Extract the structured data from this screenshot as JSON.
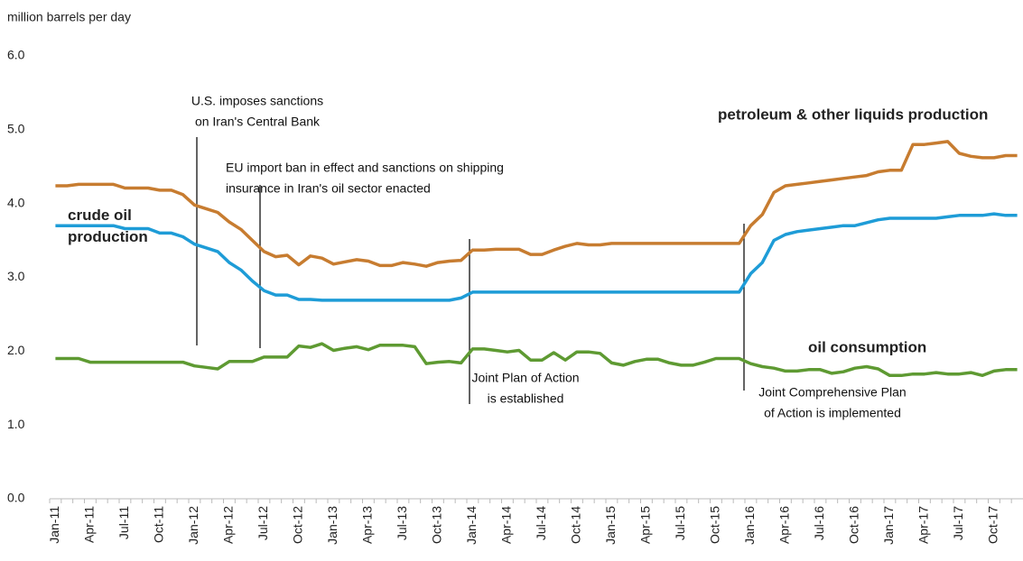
{
  "chart_data": {
    "type": "line",
    "y_label": "million barrels per day",
    "categories": [
      "Jan-11",
      null,
      null,
      "Apr-11",
      null,
      null,
      "Jul-11",
      null,
      null,
      "Oct-11",
      null,
      null,
      "Jan-12",
      null,
      null,
      "Apr-12",
      null,
      null,
      "Jul-12",
      null,
      null,
      "Oct-12",
      null,
      null,
      "Jan-13",
      null,
      null,
      "Apr-13",
      null,
      null,
      "Jul-13",
      null,
      null,
      "Oct-13",
      null,
      null,
      "Jan-14",
      null,
      null,
      "Apr-14",
      null,
      null,
      "Jul-14",
      null,
      null,
      "Oct-14",
      null,
      null,
      "Jan-15",
      null,
      null,
      "Apr-15",
      null,
      null,
      "Jul-15",
      null,
      null,
      "Oct-15",
      null,
      null,
      "Jan-16",
      null,
      null,
      "Apr-16",
      null,
      null,
      "Jul-16",
      null,
      null,
      "Oct-16",
      null,
      null,
      "Jan-17",
      null,
      null,
      "Apr-17",
      null,
      null,
      "Jul-17",
      null,
      null,
      "Oct-17",
      null,
      null
    ],
    "series": [
      {
        "name": "petroleum & other liquids production",
        "color": "#c77c30",
        "values": [
          4.24,
          4.24,
          4.26,
          4.26,
          4.26,
          4.26,
          4.21,
          4.21,
          4.21,
          4.18,
          4.18,
          4.12,
          3.98,
          3.93,
          3.88,
          3.75,
          3.65,
          3.5,
          3.35,
          3.28,
          3.3,
          3.17,
          3.29,
          3.26,
          3.18,
          3.21,
          3.24,
          3.22,
          3.16,
          3.16,
          3.2,
          3.18,
          3.15,
          3.2,
          3.22,
          3.23,
          3.37,
          3.37,
          3.38,
          3.38,
          3.38,
          3.31,
          3.31,
          3.37,
          3.42,
          3.46,
          3.44,
          3.44,
          3.46,
          3.46,
          3.46,
          3.46,
          3.46,
          3.46,
          3.46,
          3.46,
          3.46,
          3.46,
          3.46,
          3.46,
          3.7,
          3.85,
          4.15,
          4.24,
          4.26,
          4.28,
          4.3,
          4.32,
          4.34,
          4.36,
          4.38,
          4.43,
          4.45,
          4.45,
          4.8,
          4.8,
          4.82,
          4.84,
          4.68,
          4.64,
          4.62,
          4.62,
          4.65,
          4.65
        ]
      },
      {
        "name": "crude oil production",
        "color": "#1e9cd7",
        "values": [
          3.7,
          3.7,
          3.7,
          3.7,
          3.7,
          3.7,
          3.66,
          3.66,
          3.66,
          3.6,
          3.6,
          3.55,
          3.45,
          3.4,
          3.35,
          3.2,
          3.1,
          2.95,
          2.82,
          2.76,
          2.76,
          2.7,
          2.7,
          2.69,
          2.69,
          2.69,
          2.69,
          2.69,
          2.69,
          2.69,
          2.69,
          2.69,
          2.69,
          2.69,
          2.69,
          2.72,
          2.8,
          2.8,
          2.8,
          2.8,
          2.8,
          2.8,
          2.8,
          2.8,
          2.8,
          2.8,
          2.8,
          2.8,
          2.8,
          2.8,
          2.8,
          2.8,
          2.8,
          2.8,
          2.8,
          2.8,
          2.8,
          2.8,
          2.8,
          2.8,
          3.05,
          3.2,
          3.5,
          3.58,
          3.62,
          3.64,
          3.66,
          3.68,
          3.7,
          3.7,
          3.74,
          3.78,
          3.8,
          3.8,
          3.8,
          3.8,
          3.8,
          3.82,
          3.84,
          3.84,
          3.84,
          3.86,
          3.84,
          3.84
        ]
      },
      {
        "name": "oil consumption",
        "color": "#5e9a32",
        "values": [
          1.9,
          1.9,
          1.9,
          1.85,
          1.85,
          1.85,
          1.85,
          1.85,
          1.85,
          1.85,
          1.85,
          1.85,
          1.8,
          1.78,
          1.76,
          1.86,
          1.86,
          1.86,
          1.92,
          1.92,
          1.92,
          2.07,
          2.05,
          2.1,
          2.01,
          2.04,
          2.06,
          2.02,
          2.08,
          2.08,
          2.08,
          2.06,
          1.83,
          1.85,
          1.86,
          1.84,
          2.03,
          2.03,
          2.01,
          1.99,
          2.01,
          1.88,
          1.88,
          1.98,
          1.88,
          1.99,
          1.99,
          1.97,
          1.84,
          1.81,
          1.86,
          1.89,
          1.89,
          1.84,
          1.81,
          1.81,
          1.85,
          1.9,
          1.9,
          1.9,
          1.83,
          1.79,
          1.77,
          1.73,
          1.73,
          1.75,
          1.75,
          1.7,
          1.72,
          1.77,
          1.79,
          1.76,
          1.67,
          1.67,
          1.69,
          1.69,
          1.71,
          1.69,
          1.69,
          1.71,
          1.67,
          1.73,
          1.75,
          1.75
        ]
      }
    ],
    "annotations": [
      {
        "lines": [
          "U.S. imposes sanctions",
          "on Iran's Central Bank"
        ]
      },
      {
        "lines": [
          "EU import ban in effect and sanctions on shipping",
          "insurance in Iran's oil sector enacted"
        ]
      },
      {
        "lines": [
          "Joint Plan of Action",
          "is established"
        ]
      },
      {
        "lines": [
          "Joint Comprehensive Plan",
          "of Action is implemented"
        ]
      }
    ],
    "ylim": [
      0,
      6
    ],
    "yticks": [
      {
        "value": 0,
        "label": "0.0"
      },
      {
        "value": 1,
        "label": "1.0"
      },
      {
        "value": 2,
        "label": "2.0"
      },
      {
        "value": 3,
        "label": "3.0"
      },
      {
        "value": 4,
        "label": "4.0"
      },
      {
        "value": 5,
        "label": "5.0"
      },
      {
        "value": 6,
        "label": "6.0"
      }
    ],
    "grid": false
  }
}
